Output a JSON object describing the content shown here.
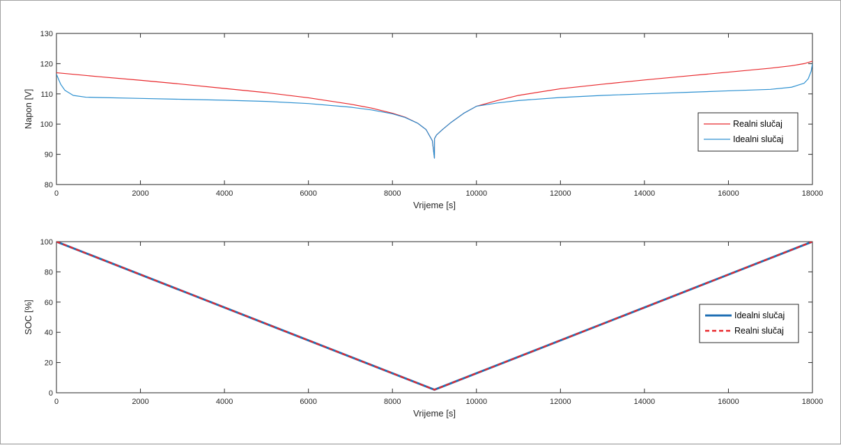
{
  "chart_data": [
    {
      "type": "line",
      "xlabel": "Vrijeme [s]",
      "ylabel": "Napon [V]",
      "xlim": [
        0,
        18000
      ],
      "ylim": [
        80,
        130
      ],
      "xticks": [
        0,
        2000,
        4000,
        6000,
        8000,
        10000,
        12000,
        14000,
        16000,
        18000
      ],
      "yticks": [
        80,
        90,
        100,
        110,
        120,
        130
      ],
      "grid": false,
      "legend_position": "right",
      "series": [
        {
          "name": "Realni slučaj",
          "color": "#e8262a",
          "x": [
            0,
            1000,
            2000,
            3000,
            4000,
            5000,
            6000,
            7000,
            7500,
            8000,
            8300,
            8600,
            8800,
            8950,
            9000,
            9001,
            9050,
            9200,
            9400,
            9700,
            10000,
            10500,
            11000,
            12000,
            13000,
            14000,
            15000,
            16000,
            17000,
            17500,
            17800,
            18000
          ],
          "y": [
            117,
            115.7,
            114.5,
            113.2,
            111.8,
            110.4,
            108.7,
            106.6,
            105.3,
            103.6,
            102.3,
            100.3,
            98.2,
            94.5,
            88.8,
            95.2,
            96.4,
            98.3,
            100.6,
            103.6,
            105.9,
            107.8,
            109.5,
            111.7,
            113.2,
            114.6,
            115.9,
            117.2,
            118.5,
            119.3,
            120.0,
            120.8
          ]
        },
        {
          "name": "Idealni slučaj",
          "color": "#2a8fd0",
          "x": [
            0,
            100,
            200,
            400,
            700,
            1000,
            2000,
            3000,
            4000,
            5000,
            6000,
            7000,
            7500,
            8000,
            8300,
            8600,
            8800,
            8950,
            9000,
            9001,
            9050,
            9200,
            9400,
            9700,
            10000,
            10500,
            11000,
            12000,
            13000,
            14000,
            15000,
            16000,
            17000,
            17500,
            17800,
            17900,
            17970,
            18000
          ],
          "y": [
            116.5,
            113.2,
            111.2,
            109.5,
            108.9,
            108.8,
            108.5,
            108.2,
            107.9,
            107.5,
            106.8,
            105.6,
            104.7,
            103.4,
            102.2,
            100.3,
            98.2,
            94.5,
            88.7,
            95.2,
            96.4,
            98.3,
            100.6,
            103.6,
            105.9,
            107.0,
            107.8,
            108.8,
            109.5,
            110.0,
            110.5,
            111.0,
            111.5,
            112.2,
            113.5,
            115.0,
            117.5,
            120.0
          ]
        }
      ]
    },
    {
      "type": "line",
      "xlabel": "Vrijeme [s]",
      "ylabel": "SOC [%]",
      "xlim": [
        0,
        18000
      ],
      "ylim": [
        0,
        100
      ],
      "xticks": [
        0,
        2000,
        4000,
        6000,
        8000,
        10000,
        12000,
        14000,
        16000,
        18000
      ],
      "yticks": [
        0,
        20,
        40,
        60,
        80,
        100
      ],
      "grid": false,
      "legend_position": "right",
      "series": [
        {
          "name": "Idealni slučaj",
          "color": "#1f6fb4",
          "style": "solid-thick",
          "x": [
            0,
            9000,
            18000
          ],
          "y": [
            100,
            2,
            100
          ]
        },
        {
          "name": "Realni slučaj",
          "color": "#e8262a",
          "style": "dashed",
          "x": [
            0,
            9000,
            18000
          ],
          "y": [
            100,
            2,
            100
          ]
        }
      ]
    }
  ]
}
